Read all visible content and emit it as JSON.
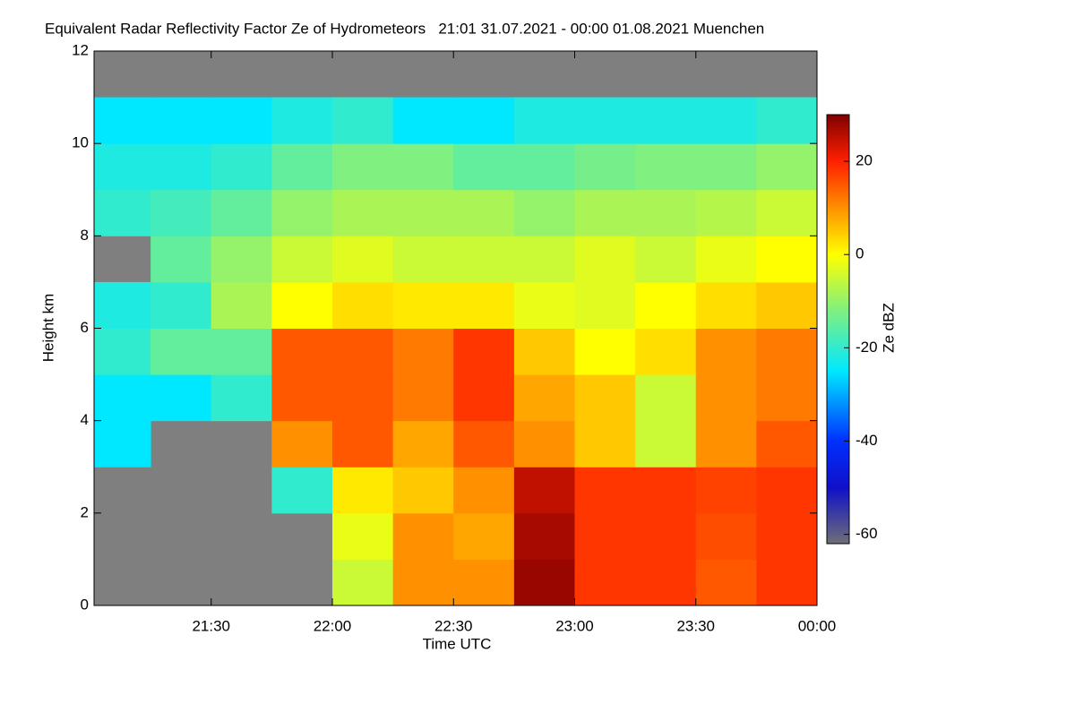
{
  "chart_data": {
    "type": "heatmap",
    "title": "Equivalent Radar Reflectivity Factor Ze of Hydrometeors   21:01 31.07.2021 - 00:00 01.08.2021 Muenchen",
    "xlabel": "Time UTC",
    "ylabel": "Height km",
    "colorbar_label": "Ze dBZ",
    "x": [
      21.125,
      21.375,
      21.625,
      21.875,
      22.125,
      22.375,
      22.625,
      22.875,
      23.125,
      23.375,
      23.625,
      23.875
    ],
    "y": [
      0.5,
      1.5,
      2.5,
      3.5,
      4.5,
      5.5,
      6.5,
      7.5,
      8.5,
      9.5,
      10.5,
      11.5
    ],
    "values": [
      [
        null,
        null,
        null,
        null,
        -5,
        10,
        10,
        28,
        18,
        18,
        15,
        18
      ],
      [
        null,
        null,
        null,
        null,
        -2,
        10,
        8,
        27,
        18,
        18,
        16,
        18
      ],
      [
        null,
        null,
        null,
        -20,
        2,
        5,
        10,
        25,
        18,
        18,
        17,
        18
      ],
      [
        -25,
        null,
        null,
        10,
        15,
        8,
        15,
        10,
        5,
        -5,
        10,
        15
      ],
      [
        -25,
        -25,
        -20,
        15,
        15,
        12,
        18,
        8,
        5,
        -5,
        10,
        12
      ],
      [
        -20,
        -15,
        -15,
        15,
        15,
        12,
        18,
        5,
        0,
        3,
        10,
        12
      ],
      [
        -22,
        -20,
        -8,
        0,
        3,
        2,
        2,
        -2,
        -3,
        0,
        3,
        5
      ],
      [
        null,
        -15,
        -10,
        -5,
        -3,
        -5,
        -5,
        -5,
        -3,
        -5,
        -2,
        0
      ],
      [
        -20,
        -18,
        -15,
        -10,
        -8,
        -8,
        -8,
        -10,
        -8,
        -8,
        -7,
        -5
      ],
      [
        -22,
        -22,
        -20,
        -15,
        -12,
        -12,
        -15,
        -15,
        -13,
        -12,
        -12,
        -10
      ],
      [
        -25,
        -25,
        -25,
        -22,
        -20,
        -25,
        -25,
        -22,
        -22,
        -22,
        -22,
        -20
      ],
      [
        null,
        null,
        null,
        null,
        null,
        null,
        null,
        null,
        null,
        null,
        null,
        null
      ]
    ],
    "xlim": [
      21.0167,
      24
    ],
    "ylim": [
      0,
      12
    ],
    "xticks": [
      {
        "value": 21.5,
        "label": "21:30"
      },
      {
        "value": 22,
        "label": "22:00"
      },
      {
        "value": 22.5,
        "label": "22:30"
      },
      {
        "value": 23,
        "label": "23:00"
      },
      {
        "value": 23.5,
        "label": "23:30"
      },
      {
        "value": 24,
        "label": "00:00"
      }
    ],
    "yticks": [
      0,
      2,
      4,
      6,
      8,
      10,
      12
    ],
    "clim": [
      -62,
      30
    ],
    "cticks": [
      -60,
      -40,
      -20,
      0,
      20
    ],
    "missing_color": "#7f7f7f",
    "colormap": [
      {
        "value": -62,
        "color": "#6e6e78"
      },
      {
        "value": -50,
        "color": "#1010c8"
      },
      {
        "value": -40,
        "color": "#0030ff"
      },
      {
        "value": -25,
        "color": "#00e8ff"
      },
      {
        "value": -12,
        "color": "#80f080"
      },
      {
        "value": 0,
        "color": "#ffff00"
      },
      {
        "value": 10,
        "color": "#ff9000"
      },
      {
        "value": 20,
        "color": "#ff2000"
      },
      {
        "value": 30,
        "color": "#800000"
      }
    ]
  }
}
